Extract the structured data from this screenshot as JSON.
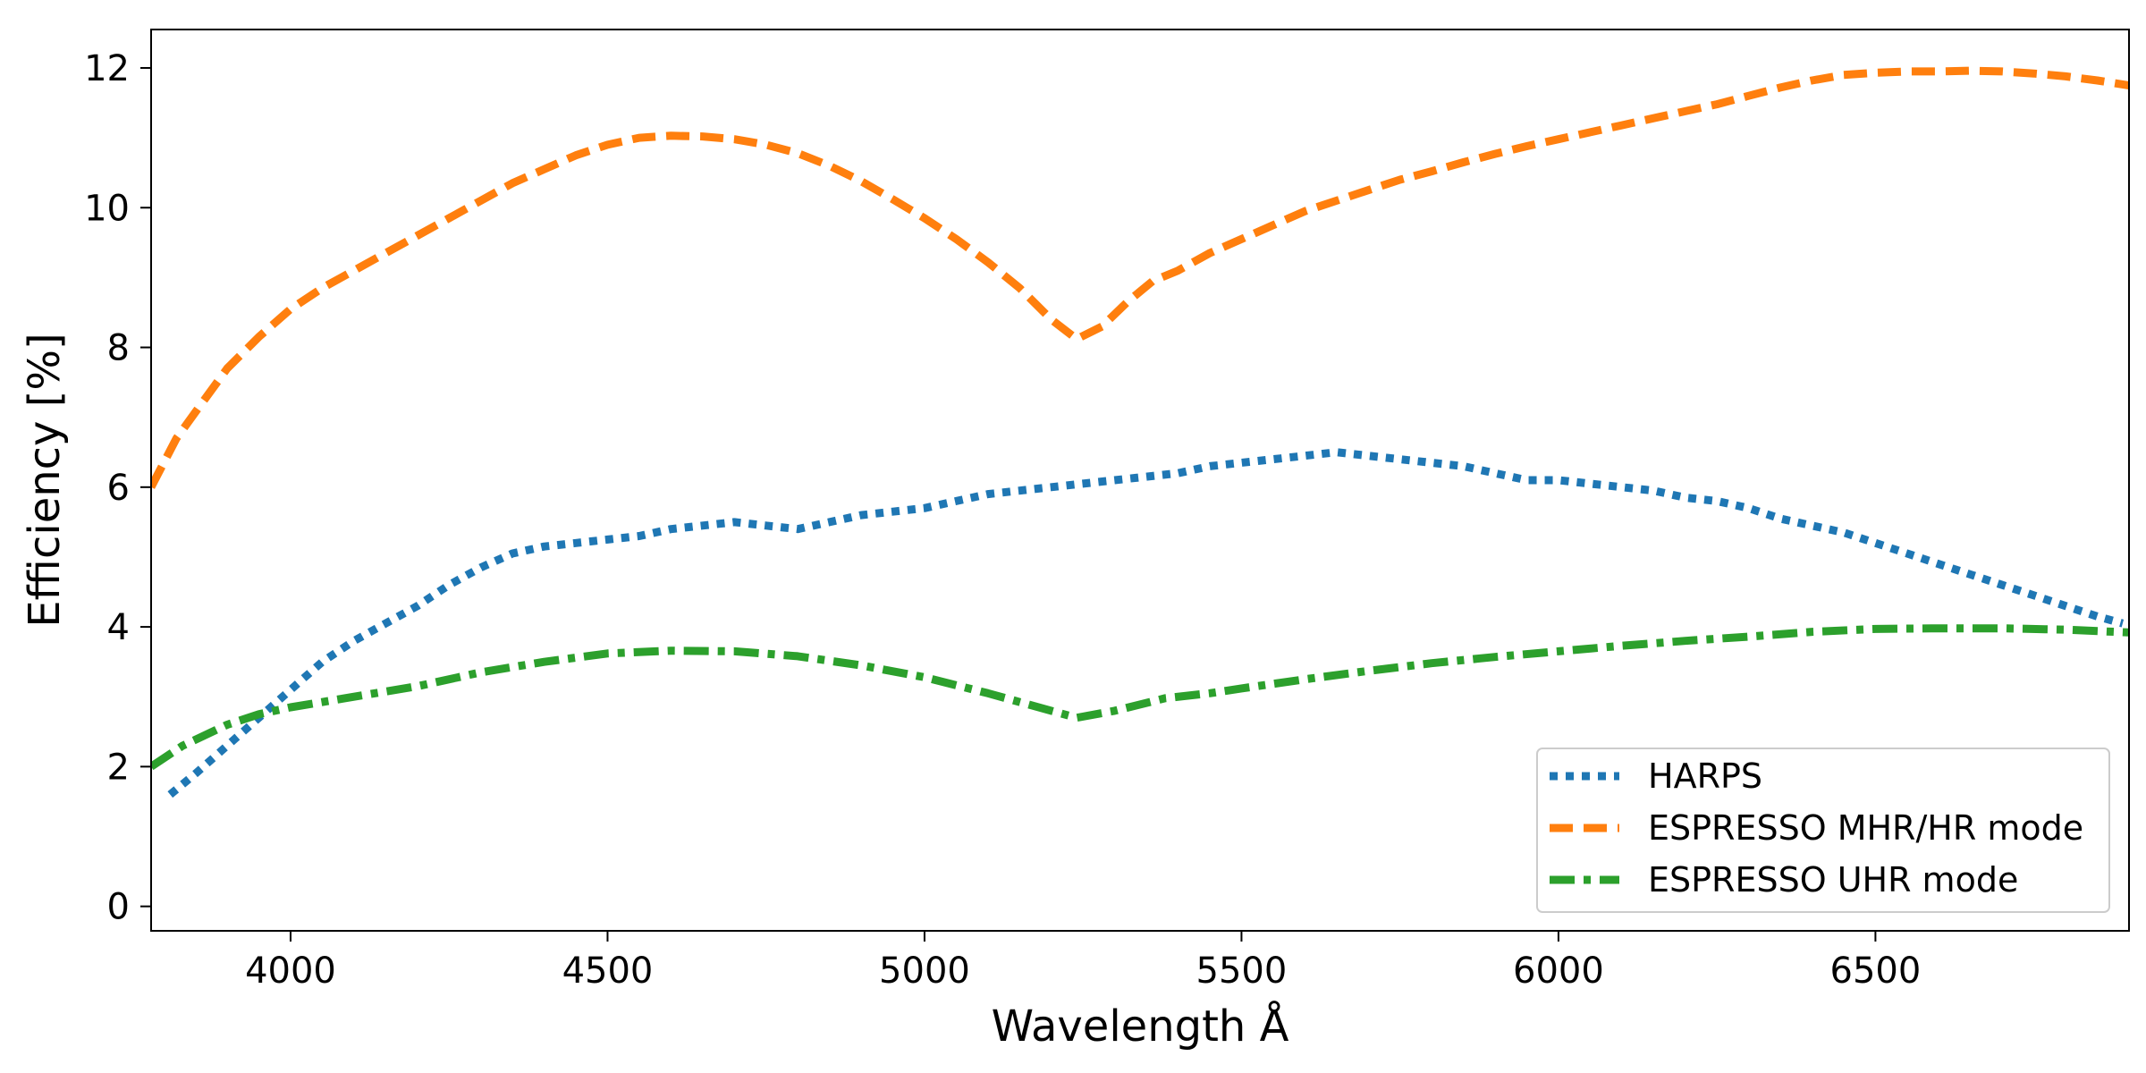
{
  "chart_data": {
    "type": "line",
    "xlabel": "Wavelength Å",
    "ylabel": "Efficiency [%]",
    "xlim": [
      3780,
      6900
    ],
    "ylim": [
      -0.35,
      12.55
    ],
    "xticks": [
      4000,
      4500,
      5000,
      5500,
      6000,
      6500
    ],
    "yticks": [
      0,
      2,
      4,
      6,
      8,
      10,
      12
    ],
    "grid": false,
    "legend_position": "lower-right",
    "series": [
      {
        "name": "HARPS",
        "color": "#1f77b4",
        "style": "dotted",
        "x": [
          3810,
          3850,
          3900,
          3950,
          4000,
          4050,
          4100,
          4150,
          4200,
          4250,
          4300,
          4350,
          4400,
          4450,
          4500,
          4550,
          4600,
          4650,
          4700,
          4750,
          4800,
          4850,
          4900,
          4950,
          5000,
          5050,
          5100,
          5150,
          5200,
          5250,
          5300,
          5350,
          5400,
          5450,
          5500,
          5550,
          5600,
          5650,
          5700,
          5750,
          5800,
          5850,
          5900,
          5950,
          6000,
          6050,
          6100,
          6150,
          6200,
          6250,
          6300,
          6350,
          6400,
          6450,
          6500,
          6550,
          6600,
          6650,
          6700,
          6750,
          6800,
          6850,
          6890
        ],
        "y": [
          1.6,
          1.9,
          2.3,
          2.7,
          3.1,
          3.5,
          3.8,
          4.05,
          4.3,
          4.6,
          4.85,
          5.05,
          5.15,
          5.2,
          5.25,
          5.3,
          5.4,
          5.45,
          5.5,
          5.45,
          5.4,
          5.5,
          5.6,
          5.65,
          5.7,
          5.8,
          5.9,
          5.95,
          6.0,
          6.05,
          6.1,
          6.15,
          6.2,
          6.3,
          6.35,
          6.4,
          6.45,
          6.5,
          6.45,
          6.4,
          6.35,
          6.3,
          6.2,
          6.1,
          6.1,
          6.05,
          6.0,
          5.95,
          5.85,
          5.8,
          5.7,
          5.55,
          5.45,
          5.35,
          5.2,
          5.05,
          4.9,
          4.75,
          4.6,
          4.45,
          4.3,
          4.15,
          4.05
        ]
      },
      {
        "name": "ESPRESSO MHR/HR mode",
        "color": "#ff7f0e",
        "style": "dashed",
        "x": [
          3780,
          3820,
          3860,
          3900,
          3950,
          4000,
          4050,
          4100,
          4150,
          4200,
          4250,
          4300,
          4350,
          4400,
          4450,
          4500,
          4550,
          4600,
          4650,
          4700,
          4750,
          4800,
          4850,
          4900,
          4950,
          5000,
          5050,
          5100,
          5150,
          5200,
          5240,
          5280,
          5320,
          5360,
          5400,
          5450,
          5500,
          5550,
          5600,
          5650,
          5700,
          5750,
          5800,
          5850,
          5900,
          5950,
          6000,
          6050,
          6100,
          6150,
          6200,
          6250,
          6300,
          6350,
          6400,
          6450,
          6500,
          6550,
          6600,
          6650,
          6700,
          6750,
          6800,
          6850,
          6900
        ],
        "y": [
          6.0,
          6.7,
          7.2,
          7.7,
          8.15,
          8.55,
          8.85,
          9.1,
          9.35,
          9.6,
          9.85,
          10.1,
          10.35,
          10.55,
          10.75,
          10.9,
          11.0,
          11.03,
          11.02,
          10.98,
          10.9,
          10.78,
          10.6,
          10.38,
          10.12,
          9.85,
          9.55,
          9.22,
          8.85,
          8.4,
          8.12,
          8.3,
          8.65,
          8.95,
          9.1,
          9.35,
          9.55,
          9.75,
          9.95,
          10.1,
          10.25,
          10.4,
          10.52,
          10.65,
          10.77,
          10.88,
          10.98,
          11.08,
          11.18,
          11.28,
          11.38,
          11.48,
          11.6,
          11.72,
          11.82,
          11.9,
          11.93,
          11.95,
          11.95,
          11.96,
          11.95,
          11.92,
          11.88,
          11.82,
          11.75
        ]
      },
      {
        "name": "ESPRESSO UHR mode",
        "color": "#2ca02c",
        "style": "dashdot",
        "x": [
          3780,
          3830,
          3900,
          3950,
          4000,
          4100,
          4200,
          4300,
          4400,
          4500,
          4600,
          4700,
          4800,
          4900,
          5000,
          5100,
          5200,
          5240,
          5300,
          5380,
          5450,
          5500,
          5600,
          5700,
          5800,
          5900,
          6000,
          6100,
          6200,
          6300,
          6400,
          6500,
          6600,
          6700,
          6800,
          6900
        ],
        "y": [
          2.0,
          2.3,
          2.6,
          2.75,
          2.85,
          3.0,
          3.15,
          3.35,
          3.5,
          3.62,
          3.66,
          3.65,
          3.58,
          3.45,
          3.28,
          3.05,
          2.8,
          2.7,
          2.8,
          2.98,
          3.05,
          3.12,
          3.25,
          3.37,
          3.48,
          3.57,
          3.65,
          3.73,
          3.8,
          3.86,
          3.93,
          3.97,
          3.98,
          3.98,
          3.96,
          3.92
        ]
      }
    ]
  }
}
